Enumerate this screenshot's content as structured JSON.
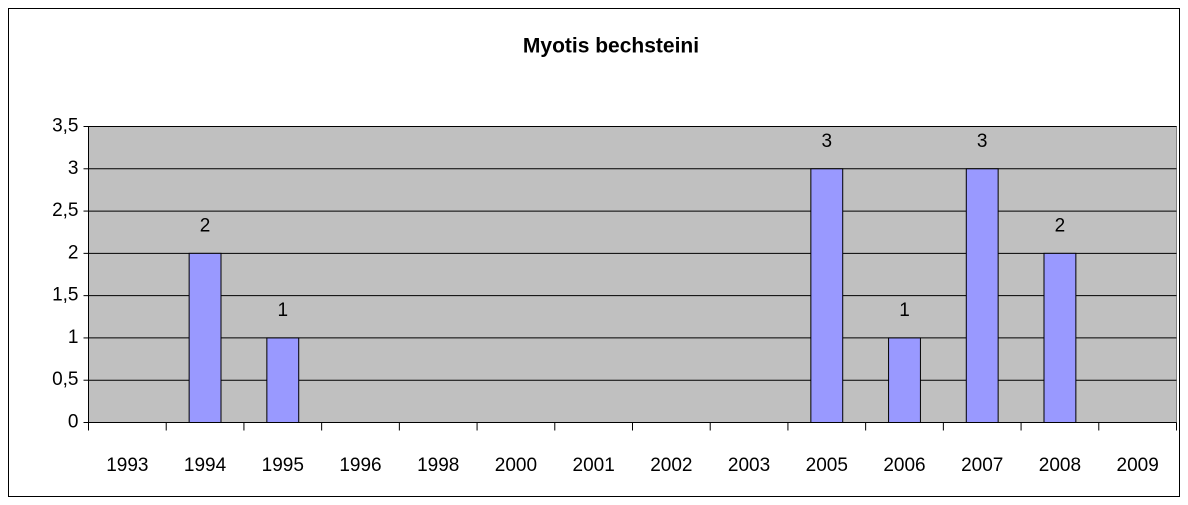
{
  "chart_data": {
    "type": "bar",
    "title": "Myotis bechsteini",
    "categories": [
      "1993",
      "1994",
      "1995",
      "1996",
      "1998",
      "2000",
      "2001",
      "2002",
      "2003",
      "2005",
      "2006",
      "2007",
      "2008",
      "2009"
    ],
    "values": [
      null,
      2,
      1,
      null,
      null,
      null,
      null,
      null,
      null,
      3,
      1,
      3,
      2,
      null
    ],
    "color": "#9999ff",
    "ylim": [
      0,
      3.5
    ],
    "yticks": [
      0,
      {
        "value": 0.5,
        "label": "0,5"
      },
      1,
      {
        "value": 1.5,
        "label": "1,5"
      },
      2,
      {
        "value": 2.5,
        "label": "2,5"
      },
      3,
      {
        "value": 3.5,
        "label": "3,5"
      }
    ],
    "grid": true
  }
}
